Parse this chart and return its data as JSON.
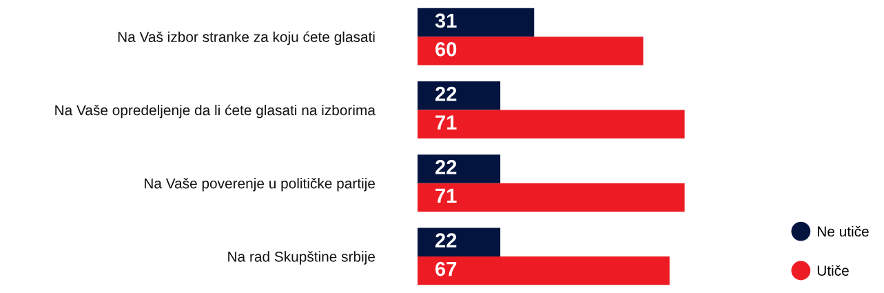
{
  "chart_data": {
    "type": "bar",
    "orientation": "horizontal",
    "categories": [
      "Na Vaš izbor stranke za koju ćete glasati",
      "Na Vaše opredeljenje da li ćete glasati na izborima",
      "Na Vaše poverenje u političke partije",
      "Na rad Skupštine srbije"
    ],
    "series": [
      {
        "name": "Ne utiče",
        "color": "#03143f",
        "values": [
          31,
          22,
          22,
          22
        ]
      },
      {
        "name": "Utiče",
        "color": "#ed1c24",
        "values": [
          60,
          71,
          71,
          67
        ]
      }
    ],
    "data_labels": true,
    "legend": "bottom right",
    "tick_labels": "y",
    "grid": false
  }
}
